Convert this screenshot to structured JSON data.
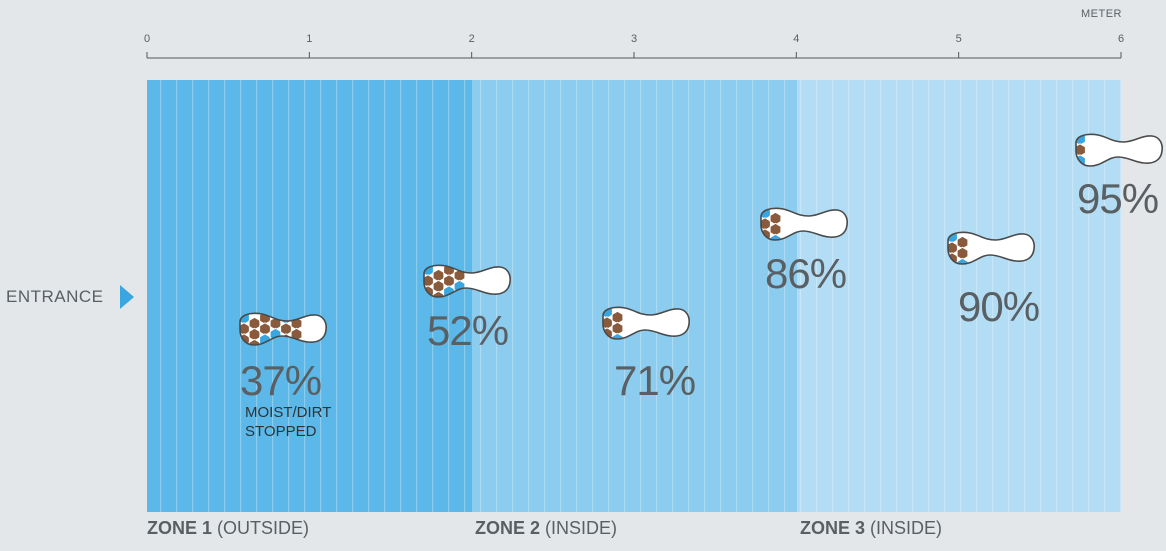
{
  "axis": {
    "unit": "METER",
    "ticks": [
      "0",
      "1",
      "2",
      "3",
      "4",
      "5",
      "6"
    ]
  },
  "entrance": {
    "label": "ENTRANCE"
  },
  "zones": [
    {
      "name": "ZONE 1",
      "qualifier": "(OUTSIDE)",
      "color": "#5bb8e8"
    },
    {
      "name": "ZONE 2",
      "qualifier": "(INSIDE)",
      "color": "#8cccee"
    },
    {
      "name": "ZONE 3",
      "qualifier": "(INSIDE)",
      "color": "#b2ddf4"
    }
  ],
  "steps": [
    {
      "value": "37%",
      "note_lines": [
        "MOIST/DIRT",
        "STOPPED"
      ]
    },
    {
      "value": "52%"
    },
    {
      "value": "71%"
    },
    {
      "value": "86%"
    },
    {
      "value": "90%"
    },
    {
      "value": "95%"
    }
  ],
  "colors": {
    "dirt": "#8a5a3c",
    "moisture": "#3aa6df",
    "sole": "#ffffff",
    "outline": "#4a4a4a"
  }
}
